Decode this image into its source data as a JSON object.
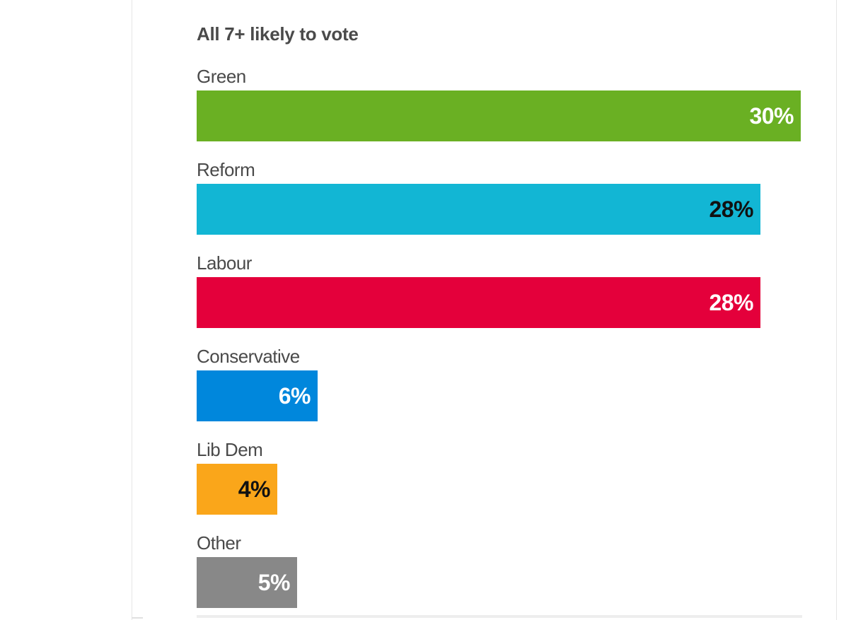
{
  "chart_data": {
    "type": "bar",
    "orientation": "horizontal",
    "title": "All 7+ likely to vote",
    "xlabel": "",
    "ylabel": "",
    "xlim": [
      0,
      30
    ],
    "grid": false,
    "legend": "none",
    "categories": [
      "Green",
      "Reform",
      "Labour",
      "Conservative",
      "Lib Dem",
      "Other"
    ],
    "values": [
      30,
      28,
      28,
      6,
      4,
      5
    ],
    "data_labels": [
      "30%",
      "28%",
      "28%",
      "6%",
      "4%",
      "5%"
    ],
    "colors": [
      "#6ab023",
      "#12b6d4",
      "#e4003b",
      "#0087dc",
      "#faa61a",
      "#888888"
    ],
    "label_colors": [
      "#ffffff",
      "#111111",
      "#ffffff",
      "#ffffff",
      "#111111",
      "#ffffff"
    ]
  }
}
